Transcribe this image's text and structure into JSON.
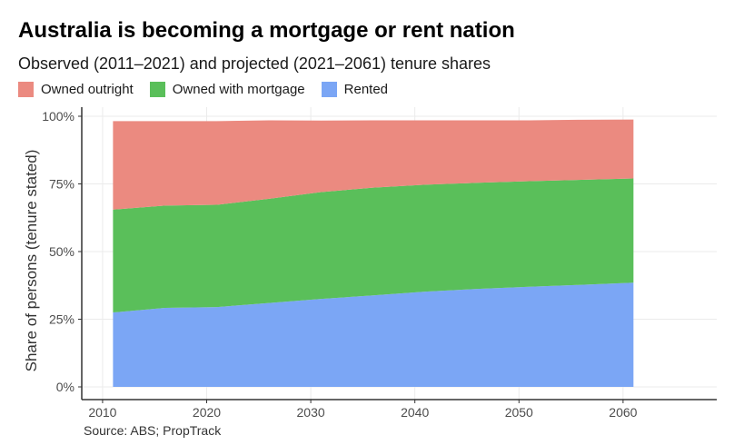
{
  "chart_data": {
    "type": "area",
    "stacked": true,
    "title": "Australia is becoming a mortgage or rent nation",
    "subtitle": "Observed (2011–2021) and projected (2021–2061) tenure shares",
    "xlabel": "",
    "ylabel": "Share of persons (tenure stated)",
    "xlim": [
      2008,
      2069
    ],
    "ylim": [
      0,
      1
    ],
    "x_ticks": [
      2010,
      2020,
      2030,
      2040,
      2050,
      2060
    ],
    "x_tick_labels": [
      "2010",
      "2020",
      "2030",
      "2040",
      "2050",
      "2060"
    ],
    "y_ticks": [
      0,
      0.25,
      0.5,
      0.75,
      1.0
    ],
    "y_tick_labels": [
      "0%",
      "25%",
      "50%",
      "75%",
      "100%"
    ],
    "grid": true,
    "legend_position": "top",
    "x": [
      2011,
      2016,
      2021,
      2026,
      2031,
      2036,
      2041,
      2046,
      2051,
      2056,
      2061
    ],
    "series": [
      {
        "name": "Rented",
        "color": "#7ba6f5",
        "values": [
          0.275,
          0.292,
          0.295,
          0.31,
          0.325,
          0.338,
          0.352,
          0.362,
          0.37,
          0.377,
          0.385
        ]
      },
      {
        "name": "Owned with mortgage",
        "color": "#5abf5a",
        "values": [
          0.38,
          0.378,
          0.378,
          0.385,
          0.395,
          0.398,
          0.395,
          0.392,
          0.39,
          0.388,
          0.385
        ]
      },
      {
        "name": "Owned outright",
        "color": "#eb8a80",
        "values": [
          0.327,
          0.312,
          0.309,
          0.29,
          0.264,
          0.249,
          0.238,
          0.231,
          0.225,
          0.222,
          0.218
        ]
      }
    ],
    "legend": [
      {
        "name": "Owned outright",
        "color": "#eb8a80"
      },
      {
        "name": "Owned with mortgage",
        "color": "#5abf5a"
      },
      {
        "name": "Rented",
        "color": "#7ba6f5"
      }
    ],
    "source": "Source: ABS; PropTrack"
  }
}
